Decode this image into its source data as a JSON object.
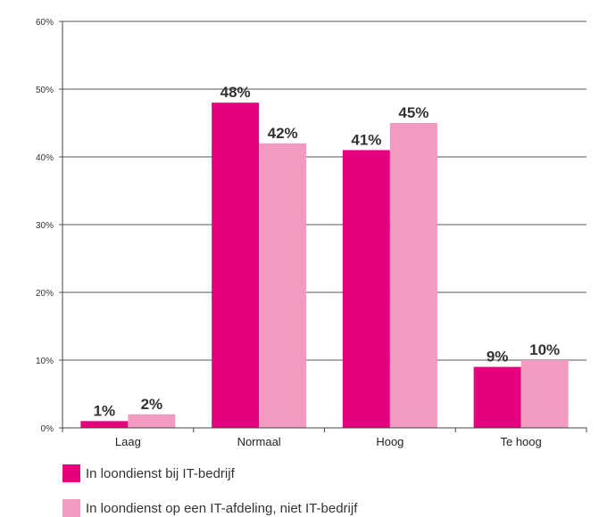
{
  "chart_data": {
    "type": "bar",
    "categories": [
      "Laag",
      "Normaal",
      "Hoog",
      "Te hoog"
    ],
    "series": [
      {
        "name": "In loondienst bij IT-bedrijf",
        "color": "#E6007E",
        "values": [
          1,
          48,
          41,
          9
        ],
        "labels": [
          "1%",
          "48%",
          "41%",
          "9%"
        ]
      },
      {
        "name": "In loondienst op een IT-afdeling, niet IT-bedrijf",
        "color": "#F29AC1",
        "values": [
          2,
          42,
          45,
          10
        ],
        "labels": [
          "2%",
          "42%",
          "45%",
          "10%"
        ]
      }
    ],
    "y_ticks": [
      "0%",
      "10%",
      "20%",
      "30%",
      "40%",
      "50%",
      "60%"
    ],
    "ylim": [
      0,
      60
    ],
    "grid": true,
    "legend_position": "bottom-left"
  }
}
